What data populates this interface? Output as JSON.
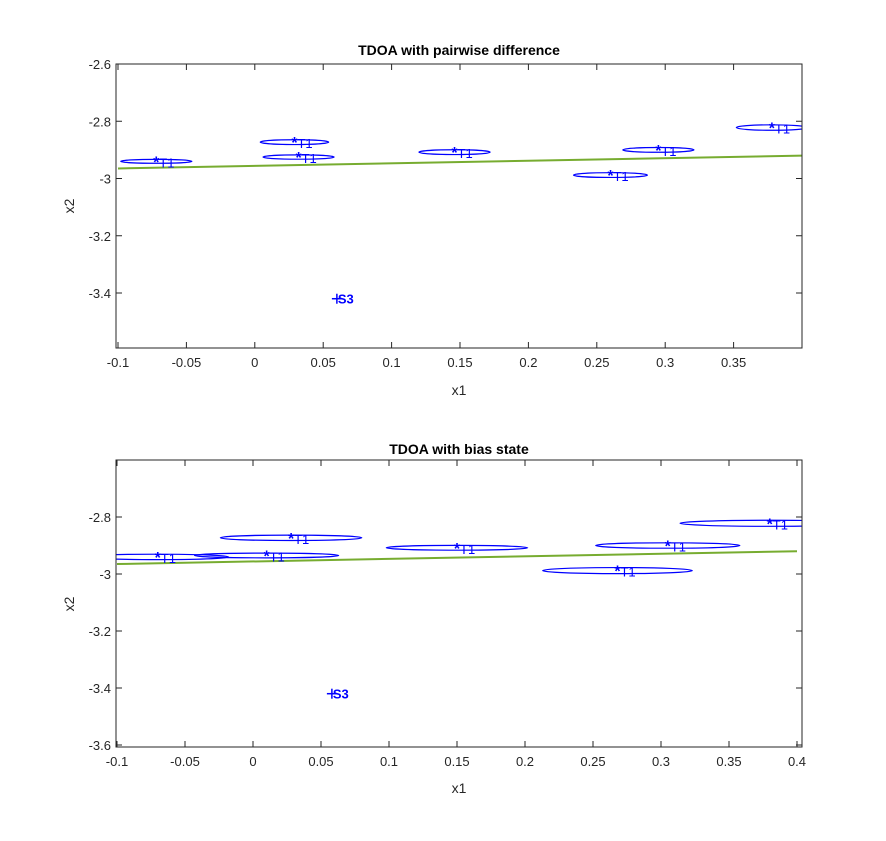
{
  "figure": {
    "colors": {
      "background": "#ffffff",
      "axes": "#262626",
      "ellipse": "#0000ff",
      "marker": "#0000ff",
      "trajectory": "#77ac30"
    }
  },
  "chart_data": [
    {
      "type": "scatter",
      "title": "TDOA with pairwise difference",
      "xlabel": "x1",
      "ylabel": "x2",
      "xlim": [
        -0.1,
        0.4
      ],
      "ylim": [
        -3.6,
        -2.6
      ],
      "xticks": [
        -0.1,
        -0.05,
        0,
        0.05,
        0.1,
        0.15,
        0.2,
        0.25,
        0.3,
        0.35
      ],
      "xtick_labels": [
        "-0.1",
        "-0.05",
        "0",
        "0.05",
        "0.1",
        "0.15",
        "0.2",
        "0.25",
        "0.3",
        "0.35"
      ],
      "yticks": [
        -2.6,
        -2.8,
        -3,
        -3.2,
        -3.4
      ],
      "ytick_labels": [
        "-2.6",
        "-2.8",
        "-3",
        "-3.2",
        "-3.4"
      ],
      "grid": false,
      "trajectory": {
        "x": [
          -0.1,
          0.4
        ],
        "y": [
          -2.965,
          -2.92
        ]
      },
      "targets": [
        {
          "label": "T1",
          "x": -0.072,
          "y": -2.94,
          "sx": 0.026,
          "sy": 0.018
        },
        {
          "label": "T1",
          "x": 0.029,
          "y": -2.873,
          "sx": 0.025,
          "sy": 0.022
        },
        {
          "label": "T1",
          "x": 0.032,
          "y": -2.925,
          "sx": 0.026,
          "sy": 0.02
        },
        {
          "label": "T1",
          "x": 0.146,
          "y": -2.908,
          "sx": 0.026,
          "sy": 0.022
        },
        {
          "label": "T1",
          "x": 0.26,
          "y": -2.988,
          "sx": 0.027,
          "sy": 0.022
        },
        {
          "label": "T1",
          "x": 0.295,
          "y": -2.9,
          "sx": 0.026,
          "sy": 0.022
        },
        {
          "label": "T1",
          "x": 0.378,
          "y": -2.822,
          "sx": 0.026,
          "sy": 0.025
        }
      ],
      "sensors": [
        {
          "label": "S3",
          "x": 0.06,
          "y": -3.42
        }
      ]
    },
    {
      "type": "scatter",
      "title": "TDOA with bias state",
      "xlabel": "x1",
      "ylabel": "x2",
      "xlim": [
        -0.1,
        0.4
      ],
      "ylim": [
        -3.6,
        -2.6
      ],
      "xticks": [
        -0.1,
        -0.05,
        0,
        0.05,
        0.1,
        0.15,
        0.2,
        0.25,
        0.3,
        0.35,
        0.4
      ],
      "xtick_labels": [
        "-0.1",
        "-0.05",
        "0",
        "0.05",
        "0.1",
        "0.15",
        "0.2",
        "0.25",
        "0.3",
        "0.35",
        "0.4"
      ],
      "yticks": [
        -2.8,
        -3,
        -3.2,
        -3.4,
        -3.6
      ],
      "ytick_labels": [
        "-2.8",
        "-3",
        "-3.2",
        "-3.4",
        "-3.6"
      ],
      "grid": false,
      "trajectory": {
        "x": [
          -0.1,
          0.4
        ],
        "y": [
          -2.965,
          -2.92
        ]
      },
      "targets": [
        {
          "label": "T1",
          "x": -0.07,
          "y": -2.94,
          "sx": 0.052,
          "sy": 0.025
        },
        {
          "label": "T1",
          "x": 0.01,
          "y": -2.935,
          "sx": 0.053,
          "sy": 0.022
        },
        {
          "label": "T1",
          "x": 0.028,
          "y": -2.873,
          "sx": 0.052,
          "sy": 0.025
        },
        {
          "label": "T1",
          "x": 0.15,
          "y": -2.908,
          "sx": 0.052,
          "sy": 0.022
        },
        {
          "label": "T1",
          "x": 0.268,
          "y": -2.988,
          "sx": 0.055,
          "sy": 0.028
        },
        {
          "label": "T1",
          "x": 0.305,
          "y": -2.9,
          "sx": 0.053,
          "sy": 0.025
        },
        {
          "label": "T1",
          "x": 0.38,
          "y": -2.822,
          "sx": 0.066,
          "sy": 0.028
        }
      ],
      "sensors": [
        {
          "label": "S3",
          "x": 0.058,
          "y": -3.42
        }
      ]
    }
  ]
}
